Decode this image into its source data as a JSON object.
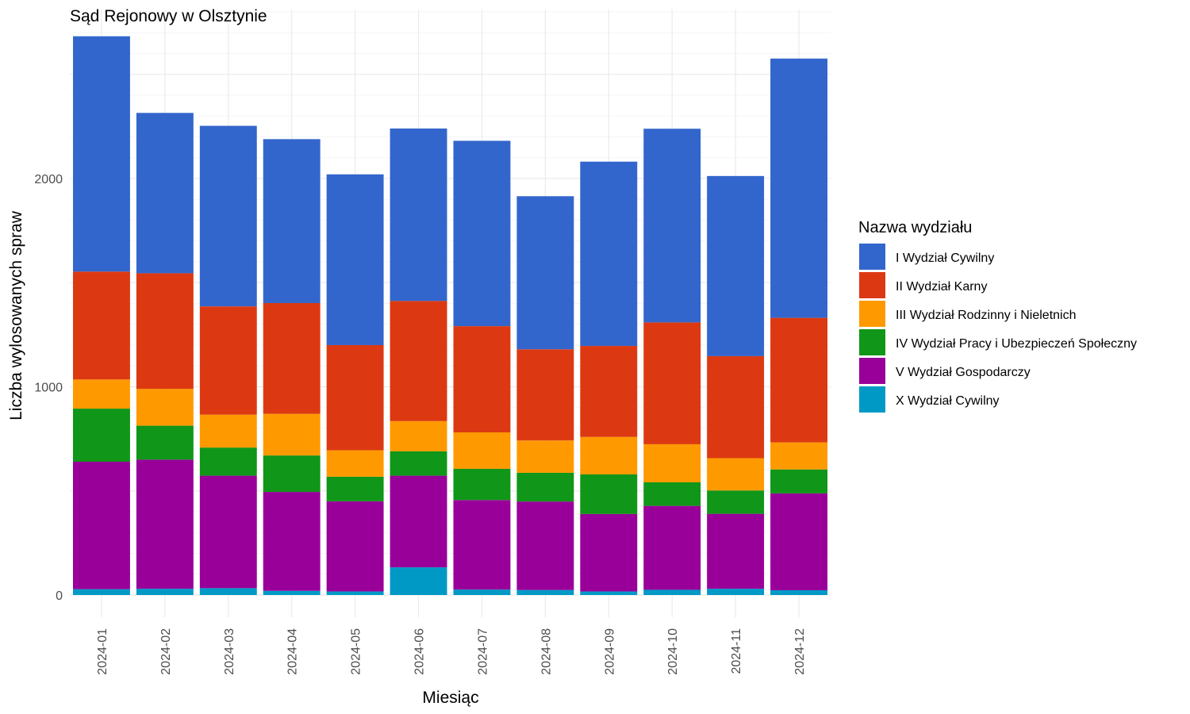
{
  "chart_data": {
    "type": "bar",
    "stacked": true,
    "title": "Sąd Rejonowy w Olsztynie",
    "xlabel": "Miesiąc",
    "ylabel": "Liczba wylosowanych spraw",
    "ylim": [
      0,
      2800
    ],
    "yticks": [
      0,
      1000,
      2000
    ],
    "grid": true,
    "legend": {
      "title": "Nazwa wydziału",
      "position": "right"
    },
    "categories": [
      "2024-01",
      "2024-02",
      "2024-03",
      "2024-04",
      "2024-05",
      "2024-06",
      "2024-07",
      "2024-08",
      "2024-09",
      "2024-10",
      "2024-11",
      "2024-12"
    ],
    "series": [
      {
        "name": "X Wydział Cywilny",
        "color": "#0099c6",
        "values": [
          28,
          30,
          33,
          20,
          17,
          133,
          26,
          24,
          17,
          25,
          30,
          23
        ]
      },
      {
        "name": "V Wydział Gospodarczy",
        "color": "#990099",
        "values": [
          612,
          620,
          540,
          475,
          433,
          440,
          430,
          425,
          372,
          403,
          360,
          465
        ]
      },
      {
        "name": "IV Wydział Pracy i Ubezpieczeń Społeczny",
        "color": "#109618",
        "values": [
          255,
          163,
          135,
          175,
          118,
          117,
          150,
          138,
          190,
          113,
          112,
          115
        ]
      },
      {
        "name": "III Wydział Rodzinny i Nieletnich",
        "color": "#ff9900",
        "values": [
          140,
          177,
          158,
          200,
          127,
          145,
          175,
          155,
          180,
          183,
          155,
          130
        ]
      },
      {
        "name": "II Wydział Karny",
        "color": "#dc3912",
        "values": [
          518,
          555,
          520,
          532,
          505,
          577,
          510,
          438,
          437,
          585,
          490,
          598
        ]
      },
      {
        "name": "I Wydział Cywilny",
        "color": "#3366cc",
        "values": [
          1130,
          770,
          867,
          787,
          820,
          828,
          890,
          735,
          885,
          930,
          865,
          1245
        ]
      }
    ]
  }
}
